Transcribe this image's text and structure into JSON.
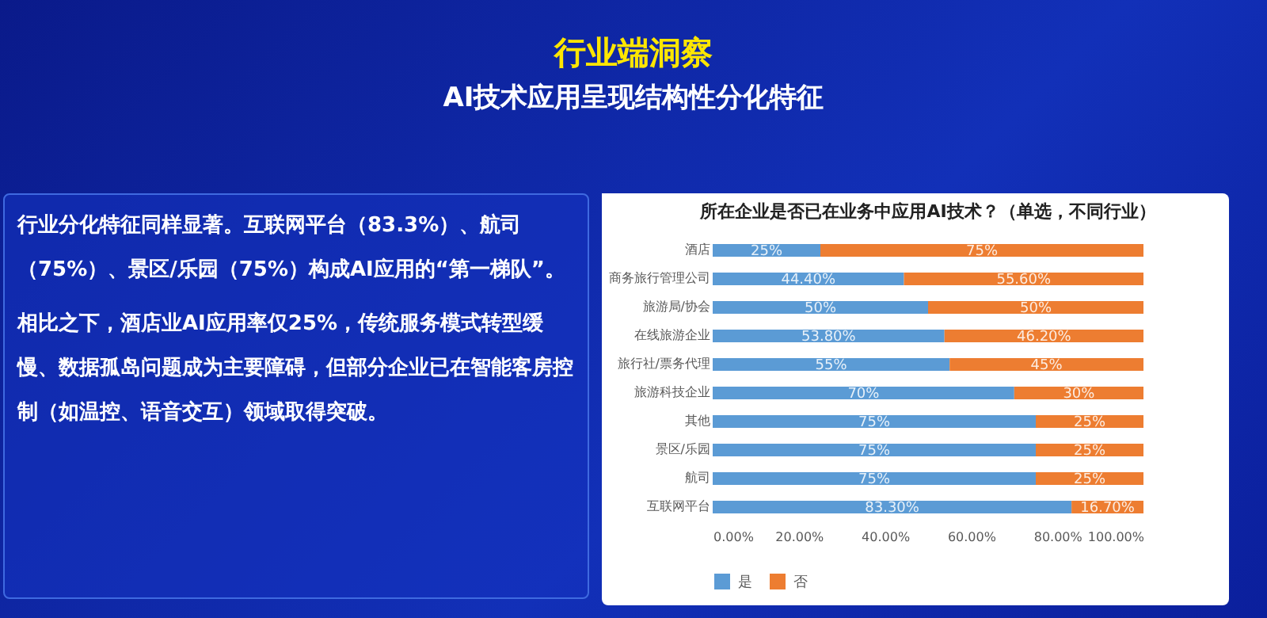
{
  "chart_data": {
    "type": "bar",
    "orientation": "horizontal",
    "stacked": true,
    "title": "所在企业是否已在业务中应用AI技术？（单选，不同行业）",
    "categories": [
      "酒店",
      "商务旅行管理公司",
      "旅游局/协会",
      "在线旅游企业",
      "旅行社/票务代理",
      "旅游科技企业",
      "其他",
      "景区/乐园",
      "航司",
      "互联网平台"
    ],
    "series": [
      {
        "name": "是",
        "color": "#5b9bd5",
        "values": [
          25,
          44.4,
          50,
          53.8,
          55,
          70,
          75,
          75,
          75,
          83.3
        ],
        "value_labels": [
          "25%",
          "44.40%",
          "50%",
          "53.80%",
          "55%",
          "70%",
          "75%",
          "75%",
          "75%",
          "83.30%"
        ]
      },
      {
        "name": "否",
        "color": "#ed7d31",
        "values": [
          75,
          55.6,
          50,
          46.2,
          45,
          30,
          25,
          25,
          25,
          16.7
        ],
        "value_labels": [
          "75%",
          "55.60%",
          "50%",
          "46.20%",
          "45%",
          "30%",
          "25%",
          "25%",
          "25%",
          "16.70%"
        ]
      }
    ],
    "xlim": [
      0,
      100
    ],
    "xticks": [
      {
        "value": 0,
        "label": "0.00%"
      },
      {
        "value": 20,
        "label": "20.00%"
      },
      {
        "value": 40,
        "label": "40.00%"
      },
      {
        "value": 60,
        "label": "60.00%"
      },
      {
        "value": 80,
        "label": "80.00%"
      },
      {
        "value": 100,
        "label": "100.00%"
      }
    ],
    "legend": "bottom",
    "annotations": [
      "行业端洞察",
      "AI技术应用呈现结构性分化特征",
      "行业分化特征同样显著。互联网平台（83.3%）、航司（75%）、景区/乐园（75%）构成AI应用的“第一梯队”。",
      "相比之下，酒店业AI应用率仅25%，传统服务模式转型缓慢、数据孤岛问题成为主要障碍，但部分企业已在智能客房控制（如温控、语音交互）领域取得突破。"
    ]
  }
}
